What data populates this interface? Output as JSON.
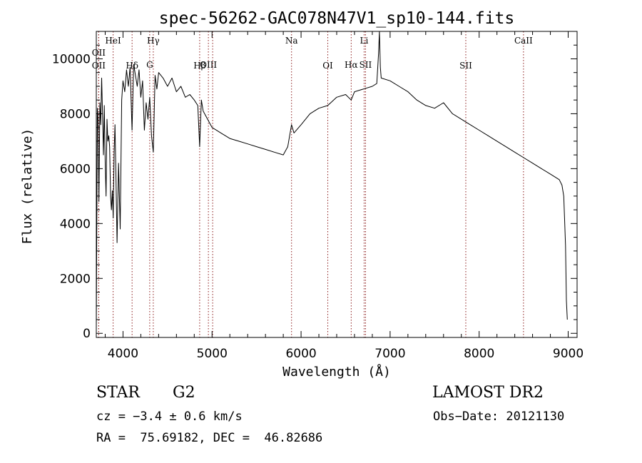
{
  "chart_data": {
    "type": "line",
    "title": "spec-56262-GAC078N47V1_sp10-144.fits",
    "xlabel": "Wavelength (Å)",
    "ylabel": "Flux (relative)",
    "xlim": [
      3700,
      9100
    ],
    "ylim": [
      -150,
      11000
    ],
    "xticks": [
      4000,
      5000,
      6000,
      7000,
      8000,
      9000
    ],
    "xtick_labels": [
      "4000",
      "5000",
      "6000",
      "7000",
      "8000",
      "9000"
    ],
    "yticks": [
      0,
      2000,
      4000,
      6000,
      8000,
      10000
    ],
    "ytick_labels": [
      "0",
      "2000",
      "4000",
      "6000",
      "8000",
      "10000"
    ],
    "grid": false,
    "line_color": "#000000",
    "marker_color": "#8b1a1a",
    "series": [
      {
        "x": [
          3700,
          3705,
          3712,
          3720,
          3730,
          3740,
          3750,
          3760,
          3770,
          3780,
          3790,
          3800,
          3810,
          3820,
          3830,
          3840,
          3850,
          3860,
          3870,
          3880,
          3890,
          3900,
          3910,
          3920,
          3933,
          3950,
          3968,
          3985,
          4000,
          4020,
          4040,
          4060,
          4080,
          4101,
          4120,
          4140,
          4160,
          4180,
          4200,
          4220,
          4240,
          4260,
          4280,
          4300,
          4320,
          4340,
          4360,
          4380,
          4400,
          4450,
          4500,
          4550,
          4600,
          4650,
          4700,
          4750,
          4800,
          4840,
          4861,
          4880,
          4900,
          4950,
          5000,
          5100,
          5200,
          5300,
          5400,
          5500,
          5600,
          5700,
          5800,
          5850,
          5893,
          5920,
          6000,
          6100,
          6200,
          6300,
          6400,
          6500,
          6563,
          6600,
          6700,
          6800,
          6850,
          6870,
          6880,
          6890,
          6900,
          7000,
          7100,
          7200,
          7300,
          7400,
          7500,
          7600,
          7700,
          7800,
          7900,
          8000,
          8100,
          8200,
          8300,
          8400,
          8500,
          8600,
          8700,
          8800,
          8850,
          8900,
          8930,
          8950,
          8970,
          8980,
          8990
        ],
        "y": [
          200,
          3500,
          8200,
          7800,
          4800,
          8400,
          7600,
          9300,
          8000,
          6500,
          8300,
          6200,
          5000,
          7800,
          7000,
          7200,
          6800,
          5000,
          4500,
          5200,
          4200,
          6600,
          7600,
          5800,
          3300,
          6200,
          3800,
          8500,
          9200,
          8800,
          9600,
          9000,
          9700,
          7400,
          9800,
          9400,
          9000,
          9600,
          8600,
          9200,
          7400,
          8400,
          7800,
          8600,
          7200,
          6600,
          9400,
          8900,
          9500,
          9300,
          9000,
          9300,
          8800,
          9000,
          8600,
          8700,
          8500,
          8300,
          6800,
          8500,
          8100,
          7800,
          7500,
          7300,
          7100,
          7000,
          6900,
          6800,
          6700,
          6600,
          6500,
          6800,
          7600,
          7300,
          7600,
          8000,
          8200,
          8300,
          8600,
          8700,
          8500,
          8800,
          8900,
          9000,
          9100,
          10200,
          11000,
          9700,
          9300,
          9200,
          9000,
          8800,
          8500,
          8300,
          8200,
          8400,
          8000,
          7800,
          7600,
          7400,
          7200,
          7000,
          6800,
          6600,
          6400,
          6200,
          6000,
          5800,
          5700,
          5600,
          5400,
          5000,
          3200,
          1200,
          500
        ]
      }
    ],
    "lines": [
      {
        "x": 3727,
        "label": "OII",
        "row": 1
      },
      {
        "x": 3727,
        "label": "OII",
        "row": 3
      },
      {
        "x": 3889,
        "label": "HeI",
        "row": 0
      },
      {
        "x": 4102,
        "label": "Hδ",
        "row": 3
      },
      {
        "x": 4300,
        "label": "G",
        "row": 2
      },
      {
        "x": 4340,
        "label": "Hγ",
        "row": 0
      },
      {
        "x": 4861,
        "label": "Hβ",
        "row": 3
      },
      {
        "x": 4959,
        "label": "OIII",
        "row": 2
      },
      {
        "x": 5007,
        "label": null,
        "row": null
      },
      {
        "x": 5893,
        "label": "Na",
        "row": 0
      },
      {
        "x": 6300,
        "label": "OI",
        "row": 3
      },
      {
        "x": 6563,
        "label": "Hα",
        "row": 2
      },
      {
        "x": 6708,
        "label": "Li",
        "row": 0
      },
      {
        "x": 6724,
        "label": "SII",
        "row": 2
      },
      {
        "x": 7850,
        "label": "SII",
        "row": 3
      },
      {
        "x": 8498,
        "label": "CaII",
        "row": 0
      }
    ]
  },
  "info": {
    "class_label": "STAR",
    "subclass_label": "G2",
    "survey": "LAMOST DR2",
    "cz": "cz = −3.4 ± 0.6 km/s",
    "obs_date": "Obs−Date: 20121130",
    "coords": "RA =  75.69182, DEC =  46.82686"
  }
}
